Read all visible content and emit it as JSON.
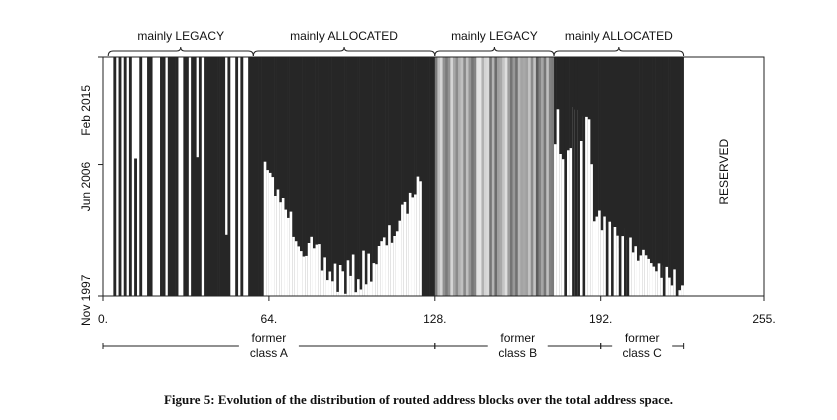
{
  "chart_data": {
    "type": "heatmap",
    "title": "",
    "xlabel": "",
    "ylabel": "",
    "x_domain": [
      0,
      255
    ],
    "x_ticks": [
      {
        "value": 0,
        "label": "0."
      },
      {
        "value": 64,
        "label": "64."
      },
      {
        "value": 128,
        "label": "128."
      },
      {
        "value": 192,
        "label": "192."
      },
      {
        "value": 255,
        "label": "255."
      }
    ],
    "y_ticks": [
      {
        "value": 1997,
        "label": "Nov 1997"
      },
      {
        "value": 2006,
        "label": "Jun 2006"
      },
      {
        "value": 2015,
        "label": "Feb 2015"
      }
    ],
    "top_braces": [
      {
        "label": "mainly LEGACY",
        "from": 2,
        "to": 58
      },
      {
        "label": "mainly ALLOCATED",
        "from": 58,
        "to": 128
      },
      {
        "label": "mainly LEGACY",
        "from": 128,
        "to": 174
      },
      {
        "label": "mainly ALLOCATED",
        "from": 174,
        "to": 224
      }
    ],
    "bottom_ranges": [
      {
        "label_line1": "former",
        "label_line2": "class A",
        "from": 0,
        "to": 128
      },
      {
        "label_line1": "former",
        "label_line2": "class B",
        "from": 128,
        "to": 192
      },
      {
        "label_line1": "former",
        "label_line2": "class C",
        "from": 192,
        "to": 224
      }
    ],
    "reserved_label": "RESERVED",
    "reserved_from": 224,
    "colors": {
      "routed": "#262626",
      "unrouted": "#ffffff",
      "frame": "#222222"
    }
  },
  "caption": "Figure 5: Evolution of the distribution of routed address blocks over the total address space."
}
